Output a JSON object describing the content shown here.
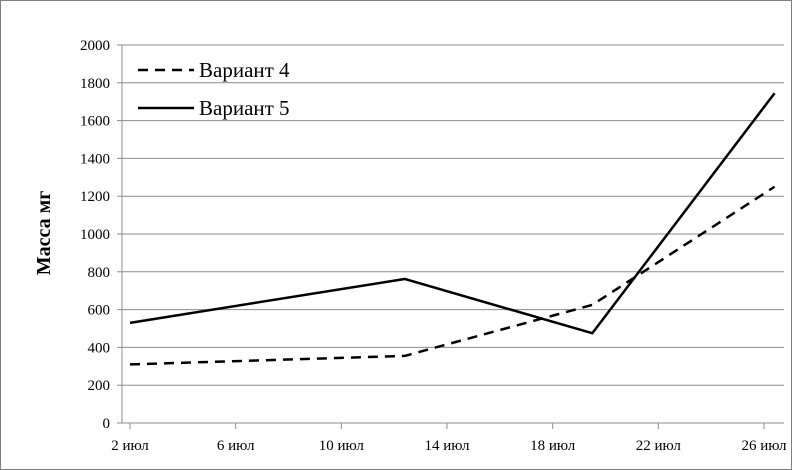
{
  "chart_data": {
    "type": "line",
    "xlabel": "",
    "ylabel": "Масса мг",
    "ylim": [
      0,
      2000
    ],
    "yticks": [
      0,
      200,
      400,
      600,
      800,
      1000,
      1200,
      1400,
      1600,
      1800,
      2000
    ],
    "xticks": [
      "2 июл",
      "6 июл",
      "10 июл",
      "14 июл",
      "18 июл",
      "22 июл",
      "26 июл"
    ],
    "xtick_days": [
      2,
      6,
      10,
      14,
      18,
      22,
      26
    ],
    "xlim_days": [
      2,
      27
    ],
    "grid": "horizontal",
    "legend_position": "top-left",
    "series": [
      {
        "name": "Вариант 4",
        "style": "dashed",
        "color": "#000000",
        "x_days": [
          2,
          12.4,
          19.5,
          26.4
        ],
        "values": [
          310,
          355,
          625,
          1250
        ]
      },
      {
        "name": "Вариант 5",
        "style": "solid",
        "color": "#000000",
        "x_days": [
          2,
          12.4,
          19.5,
          26.4
        ],
        "values": [
          530,
          762,
          475,
          1745
        ]
      }
    ]
  }
}
